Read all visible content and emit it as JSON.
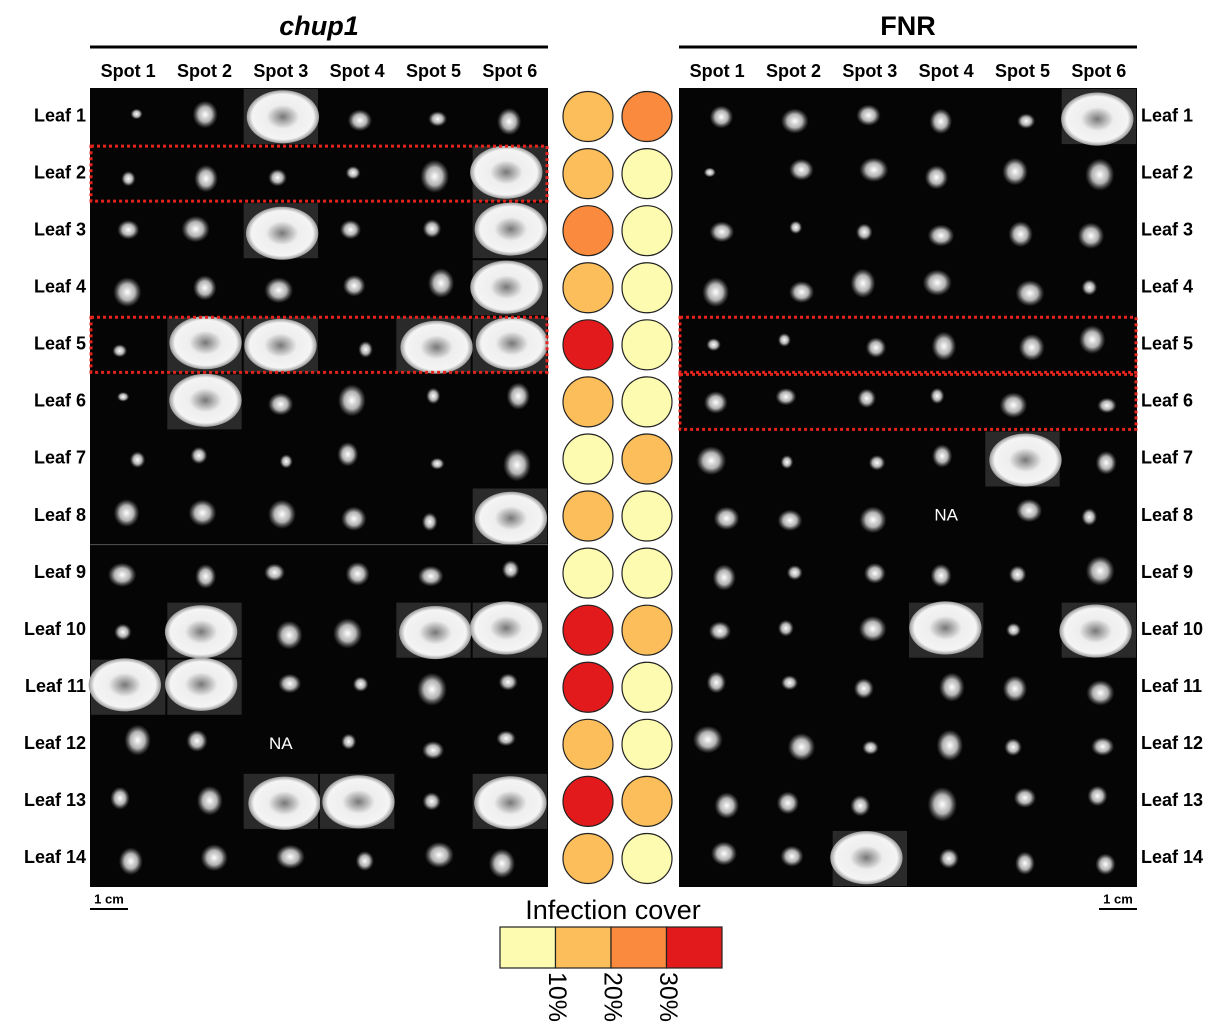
{
  "panels": [
    {
      "title": "chup1",
      "spots": [
        "Spot 1",
        "Spot 2",
        "Spot 3",
        "Spot 4",
        "Spot 5",
        "Spot 6"
      ],
      "leaves": [
        "Leaf 1",
        "Leaf 2",
        "Leaf 3",
        "Leaf 4",
        "Leaf 5",
        "Leaf 6",
        "Leaf 7",
        "Leaf 8",
        "Leaf 9",
        "Leaf 10",
        "Leaf 11",
        "Leaf 12",
        "Leaf 13",
        "Leaf 14"
      ],
      "cells": [
        [
          null,
          null,
          null,
          null,
          null,
          null
        ],
        [
          null,
          null,
          null,
          null,
          null,
          null
        ],
        [
          null,
          null,
          null,
          null,
          null,
          null
        ],
        [
          null,
          null,
          null,
          null,
          null,
          null
        ],
        [
          null,
          null,
          null,
          null,
          null,
          null
        ],
        [
          null,
          null,
          null,
          null,
          null,
          null
        ],
        [
          null,
          null,
          null,
          null,
          null,
          null
        ],
        [
          null,
          null,
          null,
          null,
          null,
          null
        ],
        [
          null,
          null,
          null,
          null,
          null,
          null
        ],
        [
          null,
          null,
          null,
          null,
          null,
          null
        ],
        [
          null,
          null,
          null,
          null,
          null,
          null
        ],
        [
          null,
          null,
          "NA",
          null,
          null,
          null
        ],
        [
          null,
          null,
          null,
          null,
          null,
          null
        ],
        [
          null,
          null,
          null,
          null,
          null,
          null
        ]
      ],
      "scale": "1 cm",
      "circle_colors": [
        "#fbbe5a",
        "#fbbe5a",
        "#f98a3e",
        "#fbbe5a",
        "#e31a1c",
        "#fbbe5a",
        "#fdfbb0",
        "#fbbe5a",
        "#fdfbb0",
        "#e31a1c",
        "#e31a1c",
        "#fbbe5a",
        "#e31a1c",
        "#fbbe5a"
      ]
    },
    {
      "title": "FNR",
      "spots": [
        "Spot 1",
        "Spot 2",
        "Spot 3",
        "Spot 4",
        "Spot 5",
        "Spot 6"
      ],
      "leaves": [
        "Leaf 1",
        "Leaf 2",
        "Leaf 3",
        "Leaf 4",
        "Leaf 5",
        "Leaf 6",
        "Leaf 7",
        "Leaf 8",
        "Leaf 9",
        "Leaf 10",
        "Leaf 11",
        "Leaf 12",
        "Leaf 13",
        "Leaf 14"
      ],
      "cells": [
        [
          null,
          null,
          null,
          null,
          null,
          null
        ],
        [
          null,
          null,
          null,
          null,
          null,
          null
        ],
        [
          null,
          null,
          null,
          null,
          null,
          null
        ],
        [
          null,
          null,
          null,
          null,
          null,
          null
        ],
        [
          null,
          null,
          null,
          null,
          null,
          null
        ],
        [
          null,
          null,
          null,
          null,
          null,
          null
        ],
        [
          null,
          null,
          null,
          null,
          null,
          null
        ],
        [
          null,
          null,
          null,
          "NA",
          null,
          null
        ],
        [
          null,
          null,
          null,
          null,
          null,
          null
        ],
        [
          null,
          null,
          null,
          null,
          null,
          null
        ],
        [
          null,
          null,
          null,
          null,
          null,
          null
        ],
        [
          null,
          null,
          null,
          null,
          null,
          null
        ],
        [
          null,
          null,
          null,
          null,
          null,
          null
        ],
        [
          null,
          null,
          null,
          null,
          null,
          null
        ]
      ],
      "scale": "1 cm",
      "circle_colors": [
        "#f98a3e",
        "#fdfbb0",
        "#fdfbb0",
        "#fdfbb0",
        "#fdfbb0",
        "#fdfbb0",
        "#fbbe5a",
        "#fdfbb0",
        "#fdfbb0",
        "#fbbe5a",
        "#fdfbb0",
        "#fdfbb0",
        "#fbbe5a",
        "#fdfbb0"
      ]
    }
  ],
  "legend": {
    "title": "Infection cover",
    "colors": [
      "#fdfbb0",
      "#fbbe5a",
      "#f98a3e",
      "#e31a1c"
    ],
    "labels": [
      "10%",
      "20%",
      "30%"
    ]
  }
}
